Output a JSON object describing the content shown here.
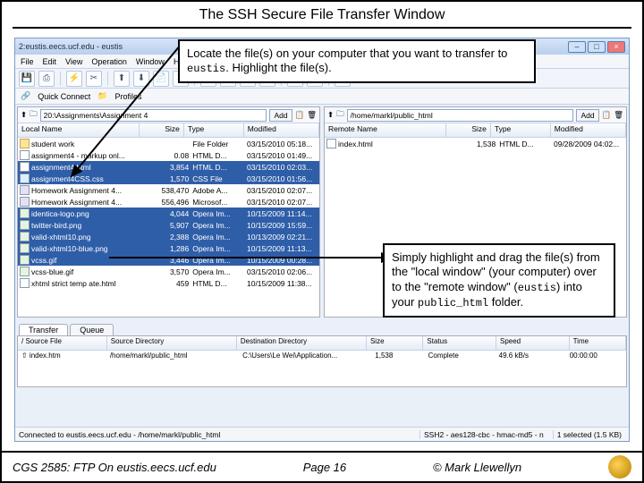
{
  "slide_title": "The SSH Secure File Transfer Window",
  "window": {
    "title": "2:eustis.eecs.ucf.edu - eustis",
    "menu": [
      "File",
      "Edit",
      "View",
      "Operation",
      "Window",
      "Help"
    ],
    "quick_connect": "Quick Connect",
    "profiles": "Profiles"
  },
  "local": {
    "path": "20:\\Assignments\\Assignment 4",
    "add": "Add",
    "columns": {
      "name": "Local Name",
      "size": "Size",
      "type": "Type",
      "mod": "Modified"
    },
    "rows": [
      {
        "icon": "folder",
        "name": "student work",
        "size": "",
        "type": "File Folder",
        "mod": "03/15/2010 05:18...",
        "sel": false
      },
      {
        "icon": "html",
        "name": "assignment4 - markup onl...",
        "size": "0.08",
        "type": "HTML D...",
        "mod": "03/15/2010 01:49...",
        "sel": false
      },
      {
        "icon": "html",
        "name": "assignment4.html",
        "size": "3,854",
        "type": "HTML D...",
        "mod": "03/15/2010 02:03...",
        "sel": true
      },
      {
        "icon": "css",
        "name": "assignment4CSS.css",
        "size": "1,570",
        "type": "CSS File",
        "mod": "03/15/2010 01:56...",
        "sel": true
      },
      {
        "icon": "doc",
        "name": "Homework Assignment 4...",
        "size": "538,470",
        "type": "Adobe A...",
        "mod": "03/15/2010 02:07...",
        "sel": false
      },
      {
        "icon": "doc",
        "name": "Homework Assignment 4...",
        "size": "556,496",
        "type": "Microsof...",
        "mod": "03/15/2010 02:07...",
        "sel": false
      },
      {
        "icon": "img",
        "name": "identica-logo.png",
        "size": "4,044",
        "type": "Opera Im...",
        "mod": "10/15/2009 11:14...",
        "sel": true
      },
      {
        "icon": "img",
        "name": "twitter-bird.png",
        "size": "5,907",
        "type": "Opera Im...",
        "mod": "10/15/2009 15:59...",
        "sel": true
      },
      {
        "icon": "img",
        "name": "valid-xhtml10.png",
        "size": "2,388",
        "type": "Opera Im...",
        "mod": "10/13/2009 02:21...",
        "sel": true
      },
      {
        "icon": "img",
        "name": "valid-xhtml10-blue.png",
        "size": "1,286",
        "type": "Opera Im...",
        "mod": "10/15/2009 11:13...",
        "sel": true
      },
      {
        "icon": "img",
        "name": "vcss.gif",
        "size": "3,446",
        "type": "Opera Im...",
        "mod": "10/15/2009 00:28...",
        "sel": true
      },
      {
        "icon": "img",
        "name": "vcss-blue.gif",
        "size": "3,570",
        "type": "Opera Im...",
        "mod": "03/15/2010 02:06...",
        "sel": false
      },
      {
        "icon": "html",
        "name": "xhtml strict temp ate.html",
        "size": "459",
        "type": "HTML D...",
        "mod": "10/15/2009 11:38...",
        "sel": false
      }
    ]
  },
  "remote": {
    "path": "/home/markl/public_html",
    "add": "Add",
    "columns": {
      "name": "Remote Name",
      "size": "Size",
      "type": "Type",
      "mod": "Modified"
    },
    "rows": [
      {
        "icon": "html",
        "name": "index.html",
        "size": "1,538",
        "type": "HTML D...",
        "mod": "09/28/2009 04:02...",
        "sel": false
      }
    ]
  },
  "transfer": {
    "tabs": {
      "transfer": "Transfer",
      "queue": "Queue"
    },
    "columns": {
      "src": "/  Source File",
      "dir": "Source Directory",
      "dest": "Destination Directory",
      "size": "Size",
      "status": "Status",
      "speed": "Speed",
      "time": "Time"
    },
    "row": {
      "src": "⇧  index.htm",
      "dir": "/home/markl/public_html",
      "dest": "C:\\Users\\Le Wei\\Application...",
      "size": "1,538",
      "status": "Complete",
      "speed": "49.6 kB/s",
      "time": "00:00:00"
    }
  },
  "status": {
    "conn": "Connected to eustis.eecs.ucf.edu - /home/markl/public_html",
    "ssh": "SSH2 - aes128-cbc - hmac-md5 - n",
    "sel": "1 selected (1.5 KB)"
  },
  "callouts": {
    "c1a": "Locate the file(s) on your computer that you want to transfer to ",
    "c1b": "eustis",
    "c1c": ". Highlight the file(s).",
    "c2a": "Simply highlight and drag the file(s) from the \"local window\" (your computer) over to the \"remote window\" (",
    "c2b": "eustis",
    "c2c": ") into your ",
    "c2d": "public_html",
    "c2e": " folder."
  },
  "footer": {
    "left": "CGS 2585: FTP On eustis.eecs.ucf.edu",
    "mid": "Page 16",
    "right": "© Mark Llewellyn"
  },
  "colors": {
    "sel_bg": "#2f5ea8"
  }
}
